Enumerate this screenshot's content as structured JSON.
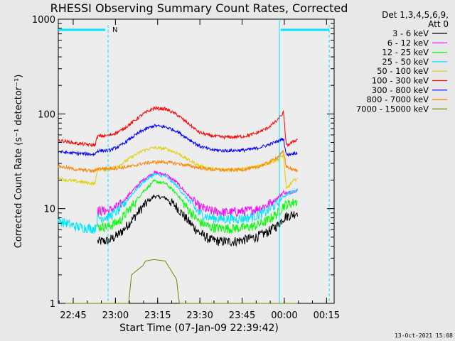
{
  "chart_data": {
    "type": "line",
    "title": "RHESSI Observing Summary Count Rates, Corrected",
    "xlabel": "Start Time (07-Jan-09 22:39:42)",
    "ylabel": "Corrected Count Rate (s⁻¹ detector⁻¹)",
    "yscale": "log",
    "ylim": [
      1,
      1000
    ],
    "xlim_minutes_from_start": [
      0,
      98
    ],
    "x_tick_labels": [
      "22:45",
      "23:00",
      "23:15",
      "23:30",
      "23:45",
      "00:00",
      "00:15"
    ],
    "x_tick_minutes": [
      5.3,
      20.3,
      35.3,
      50.3,
      65.3,
      80.3,
      95.3
    ],
    "y_tick_labels": [
      "1",
      "10",
      "100",
      "1000"
    ],
    "y_tick_values": [
      1,
      10,
      100,
      1000
    ],
    "legend_header": [
      "Det 1,3,4,5,6,9,",
      "Att 0"
    ],
    "legend_position": "top-right",
    "timestamp": "13-Oct-2021 15:08",
    "night_marker": "N",
    "colors": {
      "background": "#e8e8e8",
      "plot_bg": "#ededed",
      "cyan": "#00e5ff"
    },
    "series": [
      {
        "name": "3 - 6 keV",
        "color": "#000000",
        "x": [
          14,
          18,
          22,
          26,
          30,
          34,
          38,
          42,
          46,
          50,
          54,
          58,
          62,
          66,
          70,
          74,
          78,
          80,
          81,
          83,
          85
        ],
        "y": [
          4.5,
          4.6,
          5.5,
          7.5,
          10.5,
          13.5,
          13,
          10.5,
          7.5,
          5.6,
          4.7,
          4.5,
          4.5,
          4.7,
          5.0,
          5.6,
          6.7,
          8.0,
          8.3,
          8.6,
          9.2
        ]
      },
      {
        "name": "6 - 12 keV",
        "color": "#ff00ff",
        "x": [
          14,
          18,
          22,
          26,
          30,
          34,
          38,
          42,
          46,
          50,
          54,
          58,
          62,
          66,
          70,
          74,
          78,
          80,
          81,
          83,
          85
        ],
        "y": [
          9.5,
          9.5,
          11,
          15,
          20,
          24,
          23,
          19,
          14,
          10.5,
          9.5,
          9.2,
          9.2,
          9.4,
          9.8,
          10.8,
          13,
          15,
          14.5,
          15,
          16
        ]
      },
      {
        "name": "12 - 25 keV",
        "color": "#00ff00",
        "x": [
          14,
          18,
          22,
          26,
          30,
          34,
          38,
          42,
          46,
          50,
          54,
          58,
          62,
          66,
          70,
          74,
          78,
          80,
          81,
          83,
          85
        ],
        "y": [
          6.4,
          6.5,
          7.5,
          10.5,
          15,
          19.5,
          18.5,
          14.5,
          10,
          7.3,
          6.4,
          6.2,
          6.2,
          6.3,
          6.6,
          7.4,
          9.0,
          10.8,
          11,
          11.5,
          12
        ]
      },
      {
        "name": "25 - 50 keV",
        "color": "#00e5ff",
        "x": [
          0,
          3,
          6,
          9,
          12,
          13,
          14,
          18,
          22,
          26,
          30,
          34,
          38,
          42,
          46,
          50,
          54,
          58,
          62,
          66,
          70,
          74,
          78,
          80,
          81,
          83,
          85
        ],
        "y": [
          7.5,
          7.0,
          6.5,
          6.3,
          6.2,
          6.1,
          8.0,
          8.2,
          10,
          14,
          19,
          23,
          22,
          17.5,
          12.5,
          9.0,
          8.0,
          7.8,
          7.8,
          7.9,
          8.4,
          9.3,
          11.5,
          13.5,
          14,
          15,
          15.5
        ]
      },
      {
        "name": "50 - 100 keV",
        "color": "#e0d000",
        "x": [
          0,
          3,
          6,
          9,
          12,
          13,
          14,
          18,
          22,
          26,
          30,
          34,
          38,
          42,
          46,
          50,
          54,
          58,
          62,
          66,
          70,
          74,
          78,
          80,
          81,
          83,
          85
        ],
        "y": [
          21,
          20,
          19.5,
          19,
          18.5,
          18.5,
          26,
          26,
          29,
          35,
          41,
          44,
          43,
          39,
          33,
          28.5,
          26.5,
          26,
          26,
          26.5,
          27.5,
          29.5,
          33,
          37,
          16,
          19,
          21
        ]
      },
      {
        "name": "100 - 300 keV",
        "color": "#ff0000",
        "x": [
          0,
          3,
          6,
          9,
          12,
          13,
          14,
          18,
          22,
          26,
          30,
          34,
          38,
          42,
          46,
          50,
          54,
          58,
          62,
          66,
          70,
          74,
          78,
          80,
          81,
          83,
          85
        ],
        "y": [
          53,
          51,
          49,
          48,
          47,
          47,
          58,
          59,
          66,
          80,
          99,
          115,
          113,
          99,
          80,
          64,
          59,
          57,
          57,
          58,
          62,
          70,
          86,
          104,
          46,
          50,
          54
        ]
      },
      {
        "name": "300 - 800 keV",
        "color": "#0000ff",
        "x": [
          0,
          3,
          6,
          9,
          12,
          13,
          14,
          18,
          22,
          26,
          30,
          34,
          38,
          42,
          46,
          50,
          54,
          58,
          62,
          66,
          70,
          74,
          78,
          80,
          81,
          83,
          85
        ],
        "y": [
          40,
          39,
          38.5,
          38,
          37.5,
          37.5,
          41,
          41,
          46,
          56,
          67,
          75,
          73,
          66,
          55,
          46,
          42,
          41,
          41,
          41.5,
          43,
          46.5,
          51.5,
          55,
          37,
          38,
          39
        ]
      },
      {
        "name": "800 - 7000 keV",
        "color": "#ff8000",
        "x": [
          0,
          3,
          6,
          9,
          12,
          13,
          14,
          18,
          22,
          26,
          30,
          34,
          38,
          42,
          46,
          50,
          54,
          58,
          62,
          66,
          70,
          74,
          78,
          80,
          81,
          83,
          85
        ],
        "y": [
          28,
          27,
          26,
          25.5,
          25,
          25,
          26.5,
          26.5,
          27,
          28,
          30,
          31,
          31,
          30,
          28.5,
          27,
          26,
          25.5,
          25.5,
          26,
          27,
          30,
          35,
          40,
          28,
          26,
          25
        ]
      },
      {
        "name": "7000 - 15000 keV",
        "color": "#808000",
        "x": [
          0,
          14,
          25,
          26,
          30,
          31,
          34,
          38,
          39,
          42,
          43,
          50,
          80,
          85
        ],
        "y": [
          1,
          1,
          1,
          2,
          2.5,
          2.8,
          2.9,
          2.8,
          2.5,
          1.8,
          1,
          1,
          1,
          1
        ]
      }
    ]
  }
}
